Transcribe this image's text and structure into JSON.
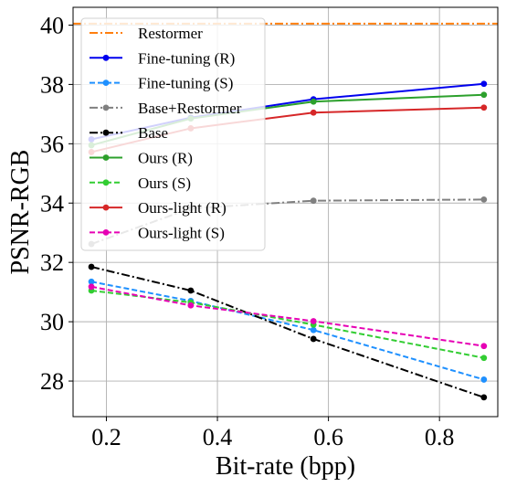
{
  "chart_data": {
    "type": "line",
    "title": "",
    "xlabel": "Bit-rate (bpp)",
    "ylabel": "PSNR-RGB",
    "xlim": [
      0.14,
      0.905
    ],
    "ylim": [
      26.8,
      40.6
    ],
    "xticks": [
      0.2,
      0.4,
      0.6,
      0.8
    ],
    "xtick_labels": [
      "0.2",
      "0.4",
      "0.6",
      "0.8"
    ],
    "yticks": [
      28,
      30,
      32,
      34,
      36,
      38,
      40
    ],
    "ytick_labels": [
      "28",
      "30",
      "32",
      "34",
      "36",
      "38",
      "40"
    ],
    "grid": true,
    "legend_position": "top-left",
    "series": [
      {
        "name": "Restormer",
        "color": "#ff7f0e",
        "style": "dashdot",
        "marker": "none",
        "x": [
          0.14,
          0.905
        ],
        "y": [
          40.05,
          40.05
        ]
      },
      {
        "name": "Fine-tuning (R)",
        "color": "#0000ee",
        "style": "solid",
        "marker": "circle",
        "x": [
          0.173,
          0.352,
          0.573,
          0.88
        ],
        "y": [
          36.15,
          36.88,
          37.5,
          38.02
        ]
      },
      {
        "name": "Fine-tuning (S)",
        "color": "#1e90ff",
        "style": "dashed",
        "marker": "circle",
        "x": [
          0.173,
          0.352,
          0.573,
          0.88
        ],
        "y": [
          31.35,
          30.7,
          29.72,
          28.05
        ]
      },
      {
        "name": "Base+Restormer",
        "color": "#808080",
        "style": "dashdot",
        "marker": "circle",
        "x": [
          0.173,
          0.352,
          0.573,
          0.88
        ],
        "y": [
          32.62,
          33.82,
          34.08,
          34.12
        ]
      },
      {
        "name": "Base",
        "color": "#000000",
        "style": "dashdot",
        "marker": "circle",
        "x": [
          0.173,
          0.352,
          0.573,
          0.88
        ],
        "y": [
          31.85,
          31.05,
          29.42,
          27.45
        ]
      },
      {
        "name": "Ours (R)",
        "color": "#2ca02c",
        "style": "solid",
        "marker": "circle",
        "x": [
          0.173,
          0.352,
          0.573,
          0.88
        ],
        "y": [
          35.95,
          36.85,
          37.42,
          37.65
        ]
      },
      {
        "name": "Ours (S)",
        "color": "#32cd32",
        "style": "dashed",
        "marker": "circle",
        "x": [
          0.173,
          0.352,
          0.573,
          0.88
        ],
        "y": [
          31.05,
          30.65,
          29.9,
          28.78
        ]
      },
      {
        "name": "Ours-light (R)",
        "color": "#d62728",
        "style": "solid",
        "marker": "circle",
        "x": [
          0.173,
          0.352,
          0.573,
          0.88
        ],
        "y": [
          35.72,
          36.52,
          37.05,
          37.22
        ]
      },
      {
        "name": "Ours-light (S)",
        "color": "#e600b4",
        "style": "dashed",
        "marker": "circle",
        "x": [
          0.173,
          0.352,
          0.573,
          0.88
        ],
        "y": [
          31.18,
          30.55,
          30.02,
          29.18
        ]
      }
    ]
  }
}
